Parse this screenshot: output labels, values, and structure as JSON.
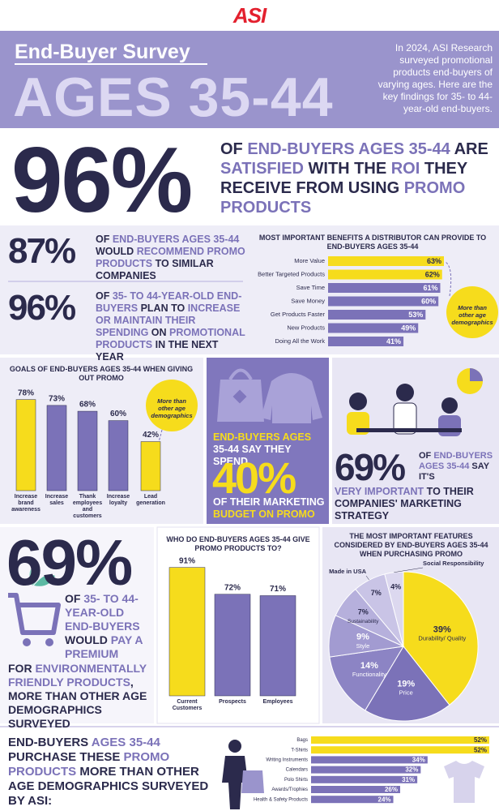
{
  "logo": "ASI",
  "header": {
    "title": "End-Buyer Survey",
    "subtitle": "AGES 35-44",
    "intro": "In 2024, ASI Research surveyed promotional products end-buyers of varying ages. Here are the key findings for 35- to 44-year-old end-buyers."
  },
  "headline": {
    "stat": "96%",
    "text": [
      "OF ",
      "END-BUYERS AGES 35-44",
      " ARE ",
      "SATISFIED",
      " WITH THE ",
      "ROI",
      " THEY RECEIVE FROM USING ",
      "PROMO PRODUCTS"
    ]
  },
  "stats": [
    {
      "stat": "87%",
      "text": [
        "OF ",
        "END-BUYERS AGES 35-44",
        " WOULD ",
        "RECOMMEND PROMO PRODUCTS",
        " TO SIMILAR COMPANIES"
      ]
    },
    {
      "stat": "96%",
      "text": [
        "OF ",
        "35- TO 44-YEAR-OLD END-BUYERS",
        " PLAN TO ",
        "INCREASE OR MAINTAIN THEIR SPENDING",
        " ON ",
        "PROMOTIONAL PRODUCTS",
        " IN THE NEXT YEAR"
      ]
    }
  ],
  "budget": {
    "text_top": [
      "END-BUYERS AGES ",
      "35-44 SAY THEY SPEND"
    ],
    "stat": "40%",
    "text_bottom": [
      "OF THEIR MARKETING ",
      "BUDGET ON PROMO"
    ]
  },
  "strategy": {
    "stat": "69%",
    "text": [
      "OF ",
      "END-BUYERS AGES 35-44",
      " SAY IT'S ",
      "VERY IMPORTANT",
      " TO THEIR COMPANIES' MARKETING STRATEGY"
    ]
  },
  "eco": {
    "stat": "69%",
    "text": [
      "OF ",
      "35- TO 44-YEAR-OLD END-BUYERS",
      " WOULD ",
      "PAY A PREMIUM",
      " FOR ",
      "ENVIRONMENTALLY FRIENDLY PRODUCTS",
      ", MORE THAN OTHER AGE DEMOGRAPHICS SURVEYED"
    ]
  },
  "purchase": {
    "text": [
      "END-BUYERS ",
      "AGES 35-44",
      " PURCHASE THESE ",
      "PROMO PRODUCTS",
      " MORE THAN OTHER AGE DEMOGRAPHICS SURVEYED BY ASI:"
    ]
  },
  "chart_data": [
    {
      "type": "hbar",
      "title": "MOST IMPORTANT BENEFITS A DISTRIBUTOR CAN PROVIDE TO END-BUYERS AGES 35-44",
      "categories": [
        "More Value",
        "Better Targeted Products",
        "Save Time",
        "Save Money",
        "Get Products Faster",
        "New Products",
        "Doing All the Work"
      ],
      "values": [
        63,
        62,
        61,
        60,
        53,
        49,
        41
      ],
      "value_labels": [
        "63%",
        "62%",
        "61%",
        "60%",
        "53%",
        "49%",
        "41%"
      ],
      "colors": [
        "#f6dc1c",
        "#f6dc1c",
        "#7b72b8",
        "#7b72b8",
        "#7b72b8",
        "#7b72b8",
        "#7b72b8"
      ],
      "annotation": "More than other age demographics"
    },
    {
      "type": "bar",
      "title": "GOALS OF END-BUYERS AGES 35-44 WHEN GIVING OUT PROMO",
      "categories": [
        "Increase brand awareness",
        "Increase sales",
        "Thank employees and customers",
        "Increase loyalty",
        "Lead generation"
      ],
      "values": [
        78,
        73,
        68,
        60,
        42
      ],
      "value_labels": [
        "78%",
        "73%",
        "68%",
        "60%",
        "42%"
      ],
      "colors": [
        "#f6dc1c",
        "#7b72b8",
        "#7b72b8",
        "#7b72b8",
        "#f6dc1c"
      ],
      "annotation": "More than other age demographics"
    },
    {
      "type": "bar",
      "title": "WHO DO END-BUYERS AGES 35-44 GIVE PROMO PRODUCTS TO?",
      "categories": [
        "Current Customers",
        "Prospects",
        "Employees"
      ],
      "values": [
        91,
        72,
        71
      ],
      "value_labels": [
        "91%",
        "72%",
        "71%"
      ],
      "colors": [
        "#f6dc1c",
        "#7b72b8",
        "#7b72b8"
      ]
    },
    {
      "type": "pie",
      "title": "THE MOST IMPORTANT FEATURES CONSIDERED BY END-BUYERS AGES 35-44 WHEN PURCHASING PROMO",
      "categories": [
        "Durability/ Quality",
        "Price",
        "Functionality",
        "Style",
        "Sustainability",
        "Made in USA",
        "Social Responsibility"
      ],
      "values": [
        39,
        19,
        14,
        9,
        7,
        7,
        4
      ],
      "value_labels": [
        "39%",
        "19%",
        "14%",
        "9%",
        "7%",
        "7%",
        "4%"
      ],
      "colors": [
        "#f6dc1c",
        "#7b72b8",
        "#8c84c4",
        "#a29bd1",
        "#b6b0dc",
        "#c9c4e6",
        "#dcd8ef"
      ]
    },
    {
      "type": "hbar",
      "categories": [
        "Bags",
        "T-Shirts",
        "Writing Instruments",
        "Calendars",
        "Polo Shirts",
        "Awards/Trophies",
        "Health & Safety Products"
      ],
      "values": [
        52,
        52,
        34,
        32,
        31,
        26,
        24
      ],
      "value_labels": [
        "52%",
        "52%",
        "34%",
        "32%",
        "31%",
        "26%",
        "24%"
      ],
      "colors": [
        "#f6dc1c",
        "#f6dc1c",
        "#7b72b8",
        "#7b72b8",
        "#7b72b8",
        "#7b72b8",
        "#7b72b8"
      ]
    }
  ]
}
